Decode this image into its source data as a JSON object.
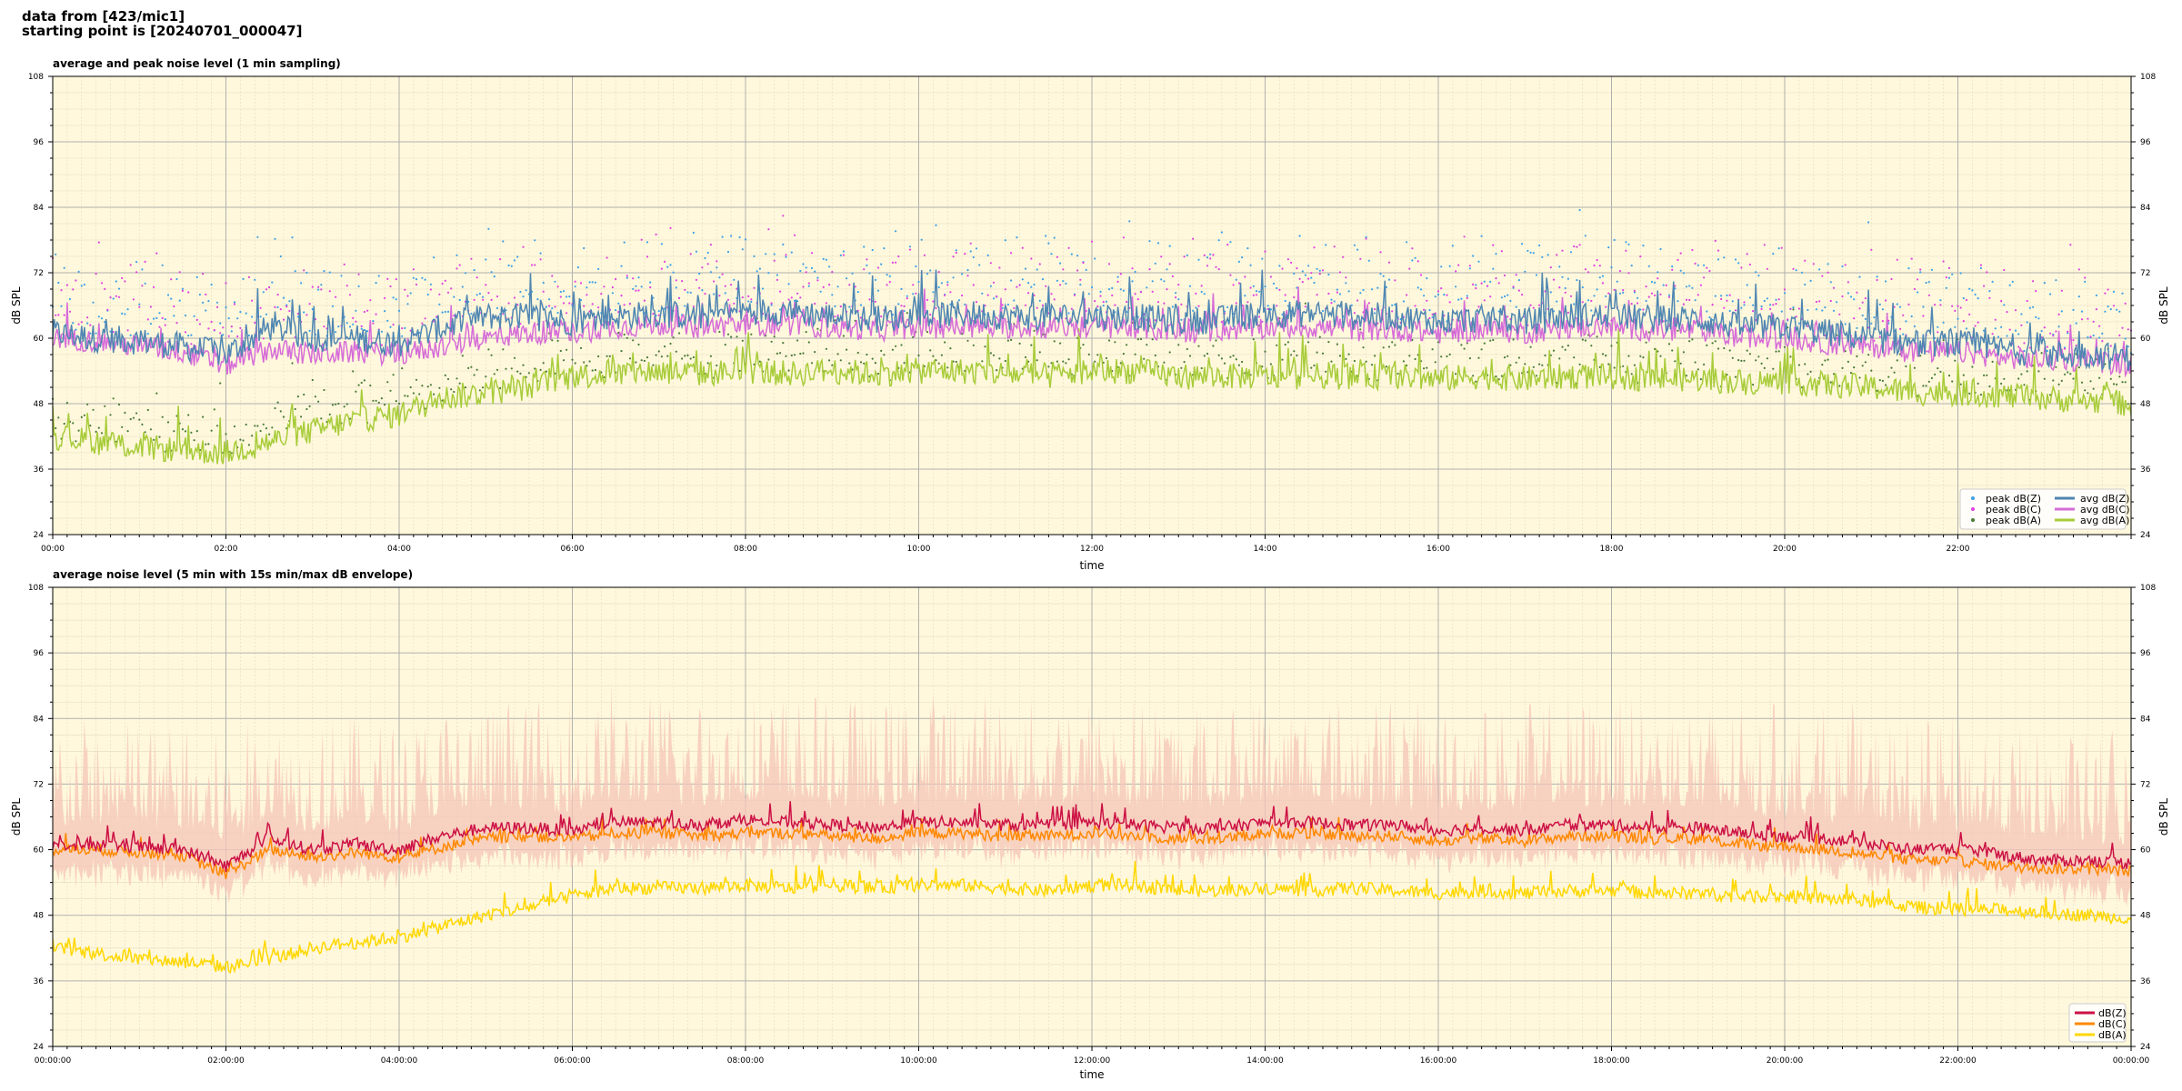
{
  "header": {
    "line1": "data from [423/mic1]",
    "line2": "starting point is [20240701_000047]"
  },
  "colors": {
    "background": "#fff8dc",
    "grid_major": "#b0b0b0",
    "grid_minor": "#e4dcc0",
    "avg_z": "#4f86b2",
    "avg_c": "#d66cd8",
    "avg_a": "#a8cc3a",
    "peak_z": "#3ea0e6",
    "peak_c": "#e040e0",
    "peak_a": "#4a7a3a",
    "env_fill": "#f6c6b8",
    "line_z": "#cc1144",
    "line_c": "#ff8800",
    "line_a": "#ffd700"
  },
  "chart_data": [
    {
      "type": "line",
      "title": "average and peak noise level (1 min sampling)",
      "xlabel": "time",
      "ylabel": "dB SPL",
      "ylim": [
        24,
        108
      ],
      "yticks": [
        24,
        36,
        48,
        60,
        72,
        84,
        96,
        108
      ],
      "xlim_hours": [
        0,
        24
      ],
      "xtick_labels": [
        "00:00",
        "02:00",
        "04:00",
        "06:00",
        "08:00",
        "10:00",
        "12:00",
        "14:00",
        "16:00",
        "18:00",
        "20:00",
        "22:00"
      ],
      "grid": true,
      "legend_position": "bottom-right",
      "legend": [
        "peak dB(Z)",
        "peak dB(C)",
        "peak dB(A)",
        "avg dB(Z)",
        "avg dB(C)",
        "avg dB(A)"
      ],
      "series": [
        {
          "name": "avg dB(Z)",
          "style": "line",
          "color_key": "avg_z",
          "x_hours": [
            0,
            0.5,
            1,
            1.5,
            2,
            2.5,
            3,
            3.5,
            4,
            4.5,
            5,
            5.5,
            6,
            6.5,
            7,
            7.5,
            8,
            8.5,
            9,
            9.5,
            10,
            10.5,
            11,
            11.5,
            12,
            12.5,
            13,
            13.5,
            14,
            14.5,
            15,
            15.5,
            16,
            16.5,
            17,
            17.5,
            18,
            18.5,
            19,
            19.5,
            20,
            20.5,
            21,
            21.5,
            22,
            22.5,
            23,
            23.5,
            24
          ],
          "values": [
            61,
            60,
            59.5,
            58.5,
            57,
            62,
            60,
            60,
            59,
            62,
            64,
            64,
            63,
            64,
            64.5,
            64,
            65,
            65,
            64,
            63.5,
            64,
            64.5,
            64,
            64,
            64,
            64,
            63,
            63.5,
            64.5,
            64.5,
            64,
            64,
            63,
            63.5,
            63,
            64,
            64,
            63.5,
            63.5,
            62,
            62,
            61,
            60,
            59,
            59,
            58,
            57,
            57,
            56.5
          ],
          "noise": 3.2
        },
        {
          "name": "avg dB(C)",
          "style": "line",
          "color_key": "avg_c",
          "x_hours": [
            0,
            0.5,
            1,
            1.5,
            2,
            2.5,
            3,
            3.5,
            4,
            4.5,
            5,
            5.5,
            6,
            6.5,
            7,
            7.5,
            8,
            8.5,
            9,
            9.5,
            10,
            10.5,
            11,
            11.5,
            12,
            12.5,
            13,
            13.5,
            14,
            14.5,
            15,
            15.5,
            16,
            16.5,
            17,
            17.5,
            18,
            18.5,
            19,
            19.5,
            20,
            20.5,
            21,
            21.5,
            22,
            22.5,
            23,
            23.5,
            24
          ],
          "values": [
            60,
            59.5,
            58.5,
            57.5,
            55,
            58,
            57,
            57.5,
            57,
            58.5,
            60,
            61,
            61,
            62,
            62.5,
            62,
            62.5,
            62.5,
            62,
            61.5,
            62,
            62,
            62,
            62,
            62,
            62,
            61,
            61.5,
            62,
            62,
            61.5,
            61.5,
            61,
            61.5,
            61,
            62,
            62,
            61.5,
            61.5,
            60,
            60,
            59,
            58.5,
            57.5,
            57.5,
            56.5,
            56,
            56,
            55
          ],
          "noise": 2.6
        },
        {
          "name": "avg dB(A)",
          "style": "line",
          "color_key": "avg_a",
          "x_hours": [
            0,
            0.5,
            1,
            1.5,
            2,
            2.5,
            3,
            3.5,
            4,
            4.5,
            5,
            5.5,
            6,
            6.5,
            7,
            7.5,
            8,
            8.5,
            9,
            9.5,
            10,
            10.5,
            11,
            11.5,
            12,
            12.5,
            13,
            13.5,
            14,
            14.5,
            15,
            15.5,
            16,
            16.5,
            17,
            17.5,
            18,
            18.5,
            19,
            19.5,
            20,
            20.5,
            21,
            21.5,
            22,
            22.5,
            23,
            23.5,
            24
          ],
          "values": [
            42,
            41,
            40,
            39.5,
            39,
            41,
            43,
            45,
            46,
            49,
            50,
            51,
            53,
            53.5,
            54,
            53.5,
            54,
            53.5,
            54,
            53.5,
            54,
            54,
            53.5,
            53,
            54,
            54,
            53,
            53,
            53,
            53,
            53,
            53,
            52.5,
            53,
            52.5,
            53,
            53,
            52.5,
            52.5,
            52,
            52,
            51.5,
            51,
            50,
            50,
            49.5,
            49,
            48.5,
            48
          ],
          "noise": 3.0
        },
        {
          "name": "peak dB(Z)",
          "style": "scatter",
          "color_key": "peak_z",
          "offset_from": "avg dB(Z)",
          "offset_range": [
            2,
            14
          ]
        },
        {
          "name": "peak dB(C)",
          "style": "scatter",
          "color_key": "peak_c",
          "offset_from": "avg dB(C)",
          "offset_range": [
            3,
            16
          ]
        },
        {
          "name": "peak dB(A)",
          "style": "scatter",
          "color_key": "peak_a",
          "offset_from": "avg dB(A)",
          "offset_range": [
            1,
            8
          ]
        }
      ]
    },
    {
      "type": "area",
      "title": "average noise level (5 min with 15s min/max dB envelope)",
      "xlabel": "time",
      "ylabel": "dB SPL",
      "ylim": [
        24,
        108
      ],
      "yticks": [
        24,
        36,
        48,
        60,
        72,
        84,
        96,
        108
      ],
      "xlim_hours": [
        0,
        24
      ],
      "xtick_labels": [
        "00:00:00",
        "02:00:00",
        "04:00:00",
        "06:00:00",
        "08:00:00",
        "10:00:00",
        "12:00:00",
        "14:00:00",
        "16:00:00",
        "18:00:00",
        "20:00:00",
        "22:00:00",
        "00:00:00"
      ],
      "grid": true,
      "legend_position": "bottom-right",
      "legend": [
        "dB(Z)",
        "dB(C)",
        "dB(A)"
      ],
      "series": [
        {
          "name": "dB(Z)",
          "style": "line",
          "color_key": "line_z",
          "x_hours": [
            0,
            0.5,
            1,
            1.5,
            2,
            2.5,
            3,
            3.5,
            4,
            4.5,
            5,
            5.5,
            6,
            6.5,
            7,
            7.5,
            8,
            8.5,
            9,
            9.5,
            10,
            10.5,
            11,
            11.5,
            12,
            12.5,
            13,
            13.5,
            14,
            14.5,
            15,
            15.5,
            16,
            16.5,
            17,
            17.5,
            18,
            18.5,
            19,
            19.5,
            20,
            20.5,
            21,
            21.5,
            22,
            22.5,
            23,
            23.5,
            24
          ],
          "values": [
            61,
            61,
            60.5,
            60,
            57,
            62,
            60,
            61,
            60,
            62.5,
            64,
            64,
            63.5,
            65,
            65,
            64.5,
            65.5,
            65,
            64.5,
            64,
            65,
            65,
            64.5,
            64.5,
            65,
            64.5,
            64,
            64,
            65,
            65,
            64.5,
            64.5,
            63.5,
            64,
            63.5,
            64.5,
            64.5,
            64,
            64,
            63,
            62.5,
            62,
            61,
            60,
            60,
            59,
            58,
            58,
            57.5
          ],
          "noise": 1.4
        },
        {
          "name": "dB(C)",
          "style": "line",
          "color_key": "line_c",
          "x_hours": [
            0,
            0.5,
            1,
            1.5,
            2,
            2.5,
            3,
            3.5,
            4,
            4.5,
            5,
            5.5,
            6,
            6.5,
            7,
            7.5,
            8,
            8.5,
            9,
            9.5,
            10,
            10.5,
            11,
            11.5,
            12,
            12.5,
            13,
            13.5,
            14,
            14.5,
            15,
            15.5,
            16,
            16.5,
            17,
            17.5,
            18,
            18.5,
            19,
            19.5,
            20,
            20.5,
            21,
            21.5,
            22,
            22.5,
            23,
            23.5,
            24
          ],
          "values": [
            60,
            60,
            59.5,
            59,
            55.5,
            60,
            58.5,
            59.5,
            58.5,
            60.5,
            62,
            62.5,
            62,
            63,
            63,
            62.5,
            63,
            63,
            62.5,
            62,
            63,
            63,
            62.5,
            62.5,
            63,
            62.5,
            62,
            62,
            63,
            63,
            62.5,
            62.5,
            61.5,
            62,
            61.5,
            62.5,
            62.5,
            62,
            62,
            61,
            60.5,
            60,
            59,
            58,
            58,
            57,
            56.5,
            56.5,
            56
          ],
          "noise": 1.3
        },
        {
          "name": "dB(A)",
          "style": "line",
          "color_key": "line_a",
          "x_hours": [
            0,
            0.5,
            1,
            1.5,
            2,
            2.5,
            3,
            3.5,
            4,
            4.5,
            5,
            5.5,
            6,
            6.5,
            7,
            7.5,
            8,
            8.5,
            9,
            9.5,
            10,
            10.5,
            11,
            11.5,
            12,
            12.5,
            13,
            13.5,
            14,
            14.5,
            15,
            15.5,
            16,
            16.5,
            17,
            17.5,
            18,
            18.5,
            19,
            19.5,
            20,
            20.5,
            21,
            21.5,
            22,
            22.5,
            23,
            23.5,
            24
          ],
          "values": [
            42,
            41,
            40,
            39.5,
            38.5,
            40,
            42,
            43,
            44,
            46,
            48,
            49.5,
            51.5,
            53,
            53,
            53,
            53.5,
            53,
            53.5,
            53,
            53.5,
            53.5,
            53,
            52.5,
            53.5,
            53.5,
            52.5,
            52.5,
            53,
            52.5,
            53,
            52.5,
            52,
            52.5,
            52,
            52.5,
            52.5,
            52,
            52,
            51.5,
            51.5,
            51,
            50.5,
            49.5,
            49,
            49,
            48.5,
            48,
            47.5
          ],
          "noise": 1.5
        },
        {
          "name": "envelope",
          "style": "band",
          "color_key": "env_fill",
          "around": "dB(Z)",
          "below": 6,
          "above_range": [
            4,
            24
          ]
        }
      ]
    }
  ]
}
